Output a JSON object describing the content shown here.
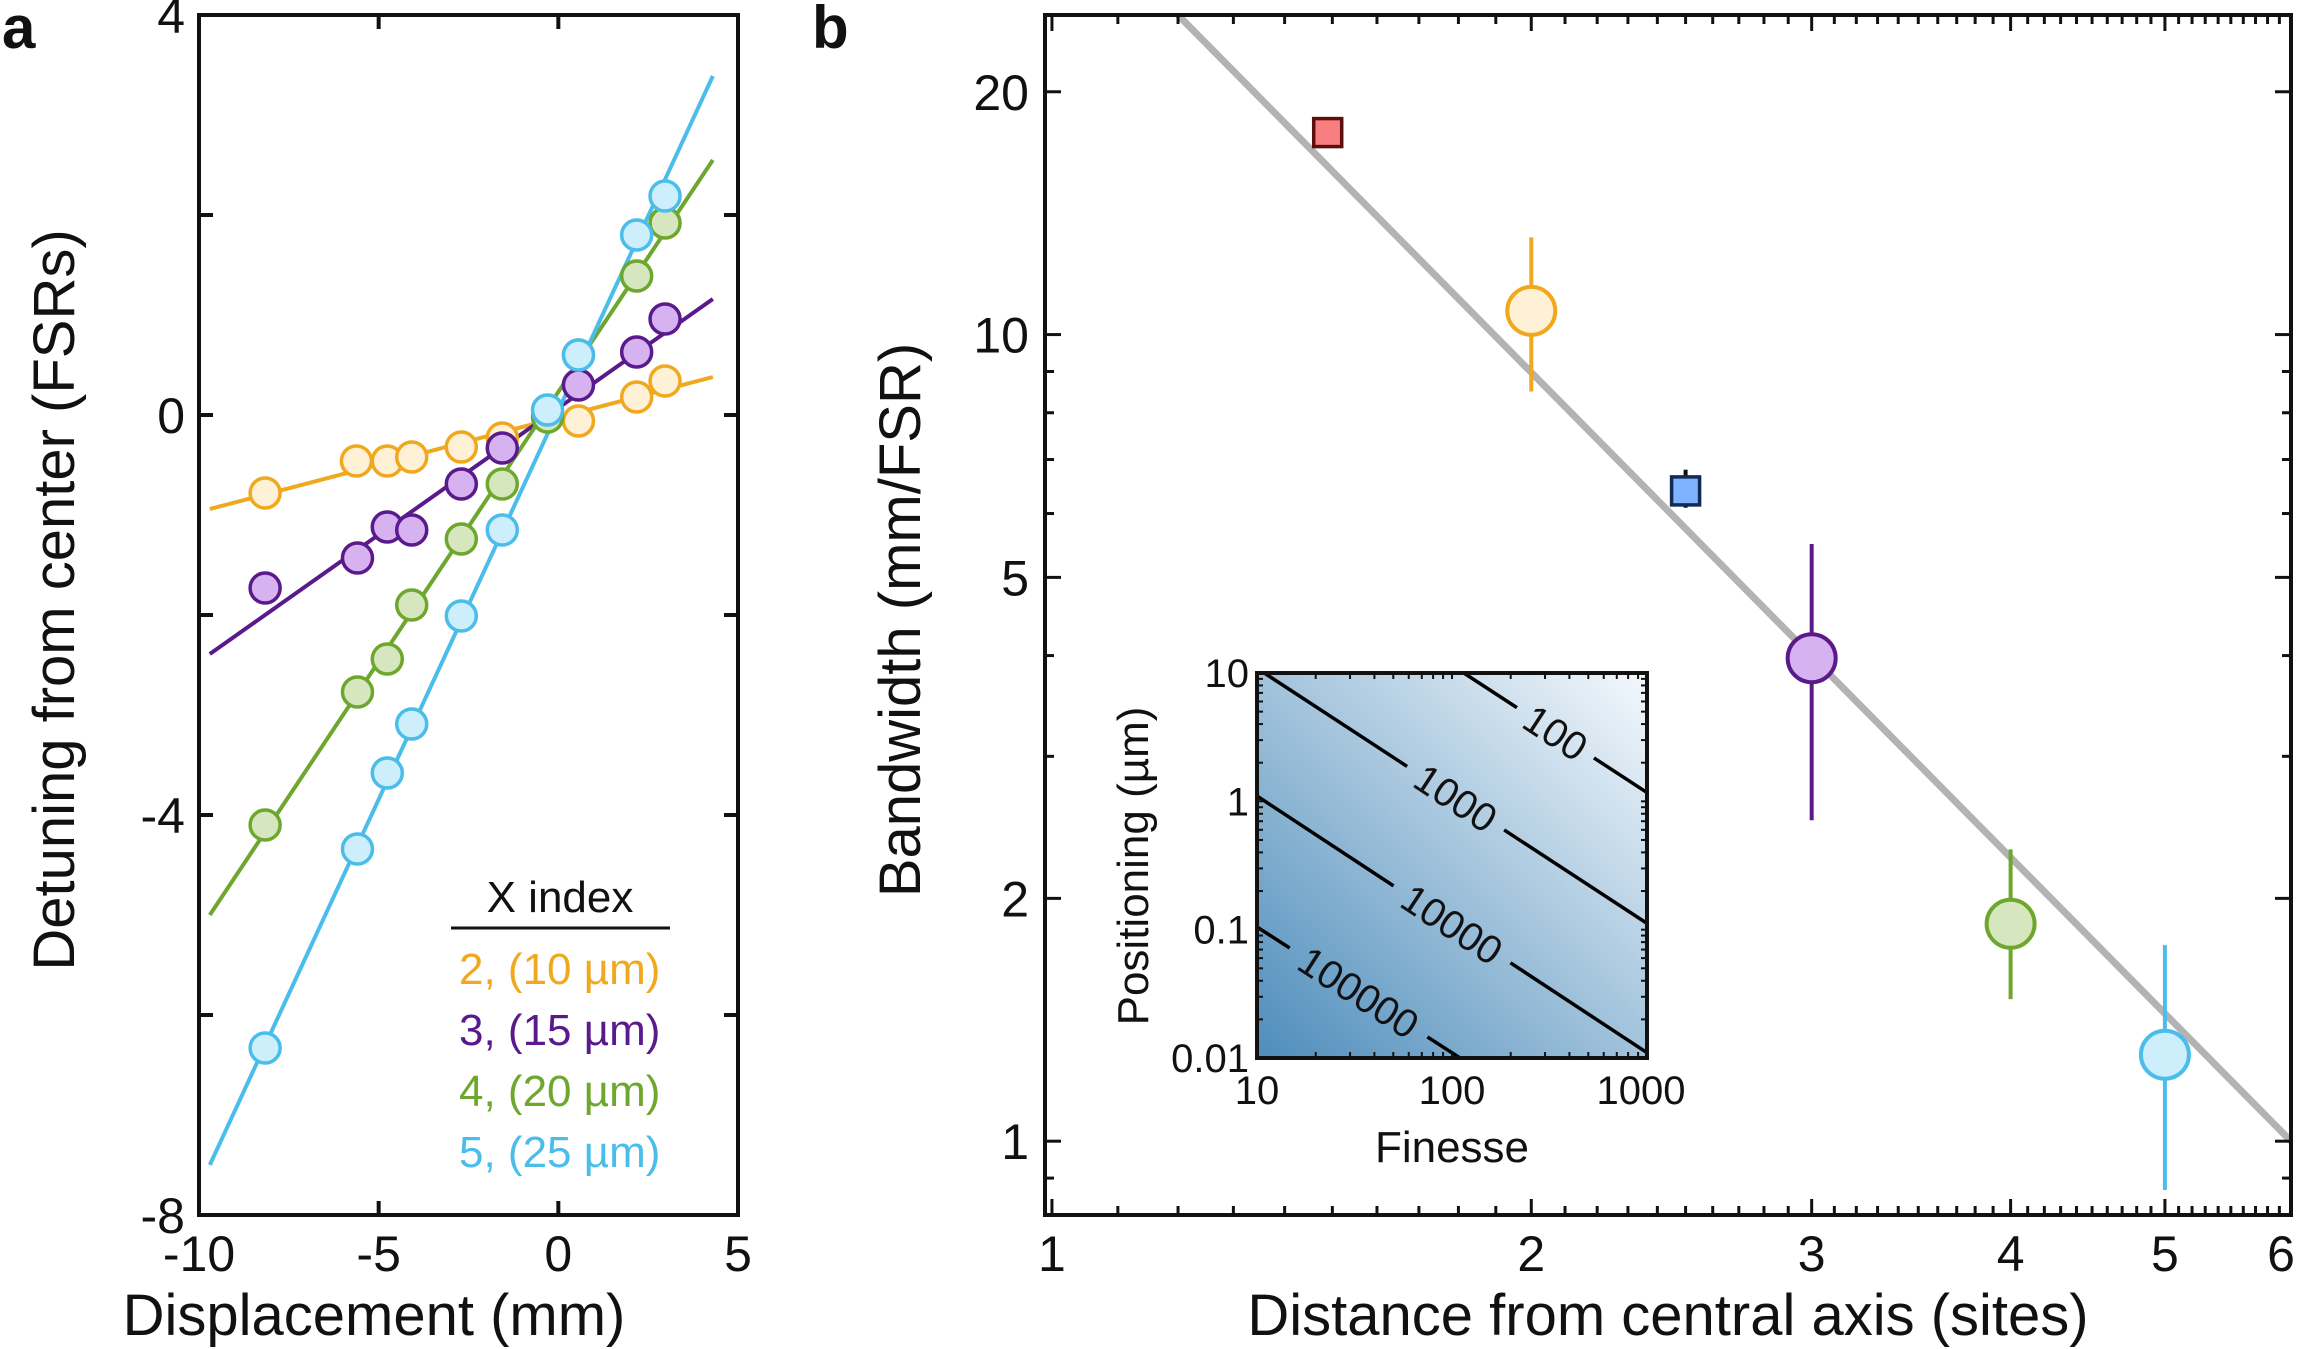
{
  "chart_data": [
    {
      "panel_label": "a",
      "type": "scatter",
      "xlabel": "Displacement (mm)",
      "ylabel": "Detuning from center (FSRs)",
      "xlim": [
        -10,
        5
      ],
      "ylim": [
        -8,
        4
      ],
      "xticks": [
        -10,
        -5,
        0,
        5
      ],
      "xtick_labels": [
        "-10",
        "-5",
        "0",
        "5"
      ],
      "yticks": [
        -8,
        -4,
        0,
        4
      ],
      "ytick_labels": [
        "-8",
        "-4",
        "0",
        "4"
      ],
      "yminor": [
        -6,
        -2,
        2
      ],
      "grid": false,
      "legend": {
        "title": "X index",
        "placement": "bottom-right"
      },
      "series": [
        {
          "name": "2, (10 µm)",
          "color": "#f0a81e",
          "fill": "#fff1d6",
          "x": [
            -8.16,
            -5.62,
            -4.76,
            -4.08,
            -2.7,
            -1.56,
            0.56,
            2.18,
            2.97
          ],
          "y": [
            -0.78,
            -0.46,
            -0.46,
            -0.42,
            -0.32,
            -0.23,
            -0.06,
            0.18,
            0.34
          ],
          "fit": {
            "x": [
              -9.7,
              4.3
            ],
            "y": [
              -0.94,
              0.38
            ]
          }
        },
        {
          "name": "3, (15 µm)",
          "color": "#5a1a8c",
          "fill": "#d6b2f0",
          "x": [
            -8.16,
            -5.59,
            -4.76,
            -4.08,
            -2.7,
            -1.56,
            0.56,
            2.18,
            2.97
          ],
          "y": [
            -1.73,
            -1.43,
            -1.12,
            -1.15,
            -0.69,
            -0.33,
            0.3,
            0.63,
            0.96
          ],
          "fit": {
            "x": [
              -9.7,
              4.3
            ],
            "y": [
              -2.39,
              1.16
            ]
          }
        },
        {
          "name": "4, (20 µm)",
          "color": "#6ea72e",
          "fill": "#d6e6bf",
          "x": [
            -8.16,
            -5.59,
            -4.76,
            -4.08,
            -2.7,
            -1.56,
            -0.3,
            0.56,
            2.18,
            2.97
          ],
          "y": [
            -4.1,
            -2.77,
            -2.44,
            -1.9,
            -1.24,
            -0.69,
            -0.02,
            0.6,
            1.39,
            1.92
          ],
          "fit": {
            "x": [
              -9.7,
              4.3
            ],
            "y": [
              -5.0,
              2.55
            ]
          }
        },
        {
          "name": "5, (25 µm)",
          "color": "#4bbdea",
          "fill": "#cdeefb",
          "x": [
            -8.16,
            -5.59,
            -4.76,
            -4.08,
            -2.7,
            -1.56,
            -0.3,
            0.56,
            2.18,
            2.97
          ],
          "y": [
            -6.33,
            -4.34,
            -3.58,
            -3.09,
            -2.01,
            -1.15,
            0.05,
            0.6,
            1.8,
            2.19
          ],
          "fit": {
            "x": [
              -9.7,
              4.3
            ],
            "y": [
              -7.5,
              3.39
            ]
          }
        }
      ]
    },
    {
      "panel_label": "b",
      "type": "scatter",
      "xscale": "log",
      "yscale": "log",
      "xlabel": "Distance from central axis (sites)",
      "ylabel": "Bandwidth (mm/FSR)",
      "xlim": [
        0.99,
        6
      ],
      "ylim": [
        0.81,
        24.9
      ],
      "xticks": [
        1,
        2,
        3,
        4,
        5,
        6
      ],
      "xtick_labels": [
        "1",
        "2",
        "3",
        "4",
        "5",
        "6"
      ],
      "yticks": [
        1,
        2,
        5,
        10,
        20
      ],
      "ytick_labels": [
        "1",
        "2",
        "5",
        "10",
        "20"
      ],
      "grid": false,
      "fit_line": {
        "color": "#b3b3b3",
        "x": [
          1.2,
          6
        ],
        "y": [
          24.9,
          1.0
        ]
      },
      "points": [
        {
          "x": 1.49,
          "y": 17.8,
          "yerr": [
            17.2,
            18.6
          ],
          "marker": "square",
          "color": "#5c0f0f",
          "fill": "#f77f7f"
        },
        {
          "x": 2,
          "y": 10.7,
          "yerr": [
            8.5,
            13.2
          ],
          "marker": "circle",
          "color": "#f0a81e",
          "fill": "#fff1d6"
        },
        {
          "x": 2.5,
          "y": 6.4,
          "yerr": [
            6.1,
            6.8
          ],
          "marker": "square",
          "color": "#142a55",
          "fill": "#7fb2ff"
        },
        {
          "x": 3,
          "y": 3.97,
          "yerr": [
            2.5,
            5.5
          ],
          "marker": "circle",
          "color": "#5a1a8c",
          "fill": "#d6b2f0"
        },
        {
          "x": 4,
          "y": 1.86,
          "yerr": [
            1.5,
            2.3
          ],
          "marker": "circle",
          "color": "#6ea72e",
          "fill": "#d6e6bf"
        },
        {
          "x": 5,
          "y": 1.28,
          "yerr": [
            0.87,
            1.75
          ],
          "marker": "circle",
          "color": "#4bbdea",
          "fill": "#cdeefb"
        }
      ],
      "inset": {
        "type": "heatmap",
        "xscale": "log",
        "yscale": "log",
        "xlabel": "Finesse",
        "ylabel": "Positioning (µm)",
        "xlim": [
          10,
          1000
        ],
        "ylim": [
          0.01,
          10
        ],
        "xtick_labels": [
          "10",
          "100",
          "1000"
        ],
        "xticks": [
          10,
          100,
          1000
        ],
        "ytick_labels": [
          "0.01",
          "0.1",
          "1",
          "10"
        ],
        "yticks": [
          0.01,
          0.1,
          1,
          10
        ],
        "colormap": {
          "low_value_color": "#f2f6fb",
          "high_value_color": "#4e8dbb"
        },
        "contours": [
          {
            "label": "100",
            "x": [
              115,
              1000
            ],
            "y": [
              10,
              1.17
            ]
          },
          {
            "label": "1000",
            "x": [
              10.9,
              1000
            ],
            "y": [
              10,
              0.112
            ]
          },
          {
            "label": "10000",
            "x": [
              10,
              1000
            ],
            "y": [
              1.1,
              0.011
            ]
          },
          {
            "label": "100000",
            "x": [
              10,
              110
            ],
            "y": [
              0.105,
              0.01
            ]
          }
        ]
      }
    }
  ]
}
